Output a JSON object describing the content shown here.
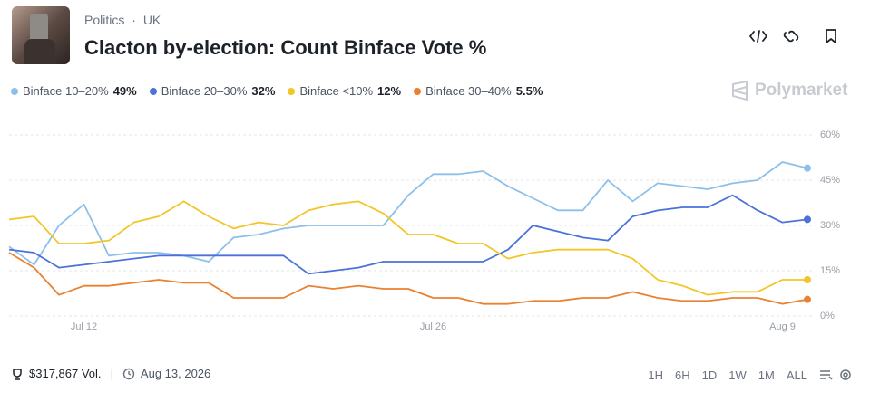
{
  "header": {
    "category": "Politics",
    "subcategory": "UK",
    "title": "Clacton by-election: Count Binface Vote %"
  },
  "brand": "Polymarket",
  "chart_data": {
    "type": "line",
    "x": [
      "Jul 9",
      "Jul 10",
      "Jul 11",
      "Jul 12",
      "Jul 13",
      "Jul 14",
      "Jul 15",
      "Jul 16",
      "Jul 17",
      "Jul 18",
      "Jul 19",
      "Jul 20",
      "Jul 21",
      "Jul 22",
      "Jul 23",
      "Jul 24",
      "Jul 25",
      "Jul 26",
      "Jul 27",
      "Jul 28",
      "Jul 29",
      "Jul 30",
      "Jul 31",
      "Aug 1",
      "Aug 2",
      "Aug 3",
      "Aug 4",
      "Aug 5",
      "Aug 6",
      "Aug 7",
      "Aug 8",
      "Aug 9",
      "Aug 10"
    ],
    "xticks": [
      "Jul 12",
      "Jul 26",
      "Aug 9"
    ],
    "ylim": [
      0,
      60
    ],
    "yticks": [
      {
        "value": 0,
        "label": "0%"
      },
      {
        "value": 15,
        "label": "15%"
      },
      {
        "value": 30,
        "label": "30%"
      },
      {
        "value": 45,
        "label": "45%"
      },
      {
        "value": 60,
        "label": "60%"
      }
    ],
    "grid": true,
    "series": [
      {
        "name": "Binface 10–20%",
        "color": "#8cc0ea",
        "latest": {
          "value": 49,
          "label": "49%"
        },
        "values": [
          23,
          17,
          30,
          37,
          20,
          21,
          21,
          20,
          18,
          26,
          27,
          29,
          30,
          30,
          30,
          30,
          40,
          47,
          47,
          48,
          43,
          39,
          35,
          35,
          45,
          38,
          44,
          43,
          42,
          44,
          45,
          51,
          49
        ]
      },
      {
        "name": "Binface 20–30%",
        "color": "#4a72d9",
        "latest": {
          "value": 32,
          "label": "32%"
        },
        "values": [
          22,
          21,
          16,
          17,
          18,
          19,
          20,
          20,
          20,
          20,
          20,
          20,
          14,
          15,
          16,
          18,
          18,
          18,
          18,
          18,
          22,
          30,
          28,
          26,
          25,
          33,
          35,
          36,
          36,
          40,
          35,
          31,
          32
        ]
      },
      {
        "name": "Binface <10%",
        "color": "#f2c628",
        "latest": {
          "value": 12,
          "label": "12%"
        },
        "values": [
          32,
          33,
          24,
          24,
          25,
          31,
          33,
          38,
          33,
          29,
          31,
          30,
          35,
          37,
          38,
          34,
          27,
          27,
          24,
          24,
          19,
          21,
          22,
          22,
          22,
          19,
          12,
          10,
          7,
          8,
          8,
          12,
          12
        ]
      },
      {
        "name": "Binface 30–40%",
        "color": "#ea8130",
        "latest": {
          "value": 5.5,
          "label": "5.5%"
        },
        "values": [
          21,
          16,
          7,
          10,
          10,
          11,
          12,
          11,
          11,
          6,
          6,
          6,
          10,
          9,
          10,
          9,
          9,
          6,
          6,
          4,
          4,
          5,
          5,
          6,
          6,
          8,
          6,
          5,
          5,
          6,
          6,
          4,
          5.5
        ]
      }
    ]
  },
  "footer": {
    "volume": "$317,867 Vol.",
    "date": "Aug 13, 2026",
    "ranges": [
      "1H",
      "6H",
      "1D",
      "1W",
      "1M",
      "ALL"
    ]
  }
}
